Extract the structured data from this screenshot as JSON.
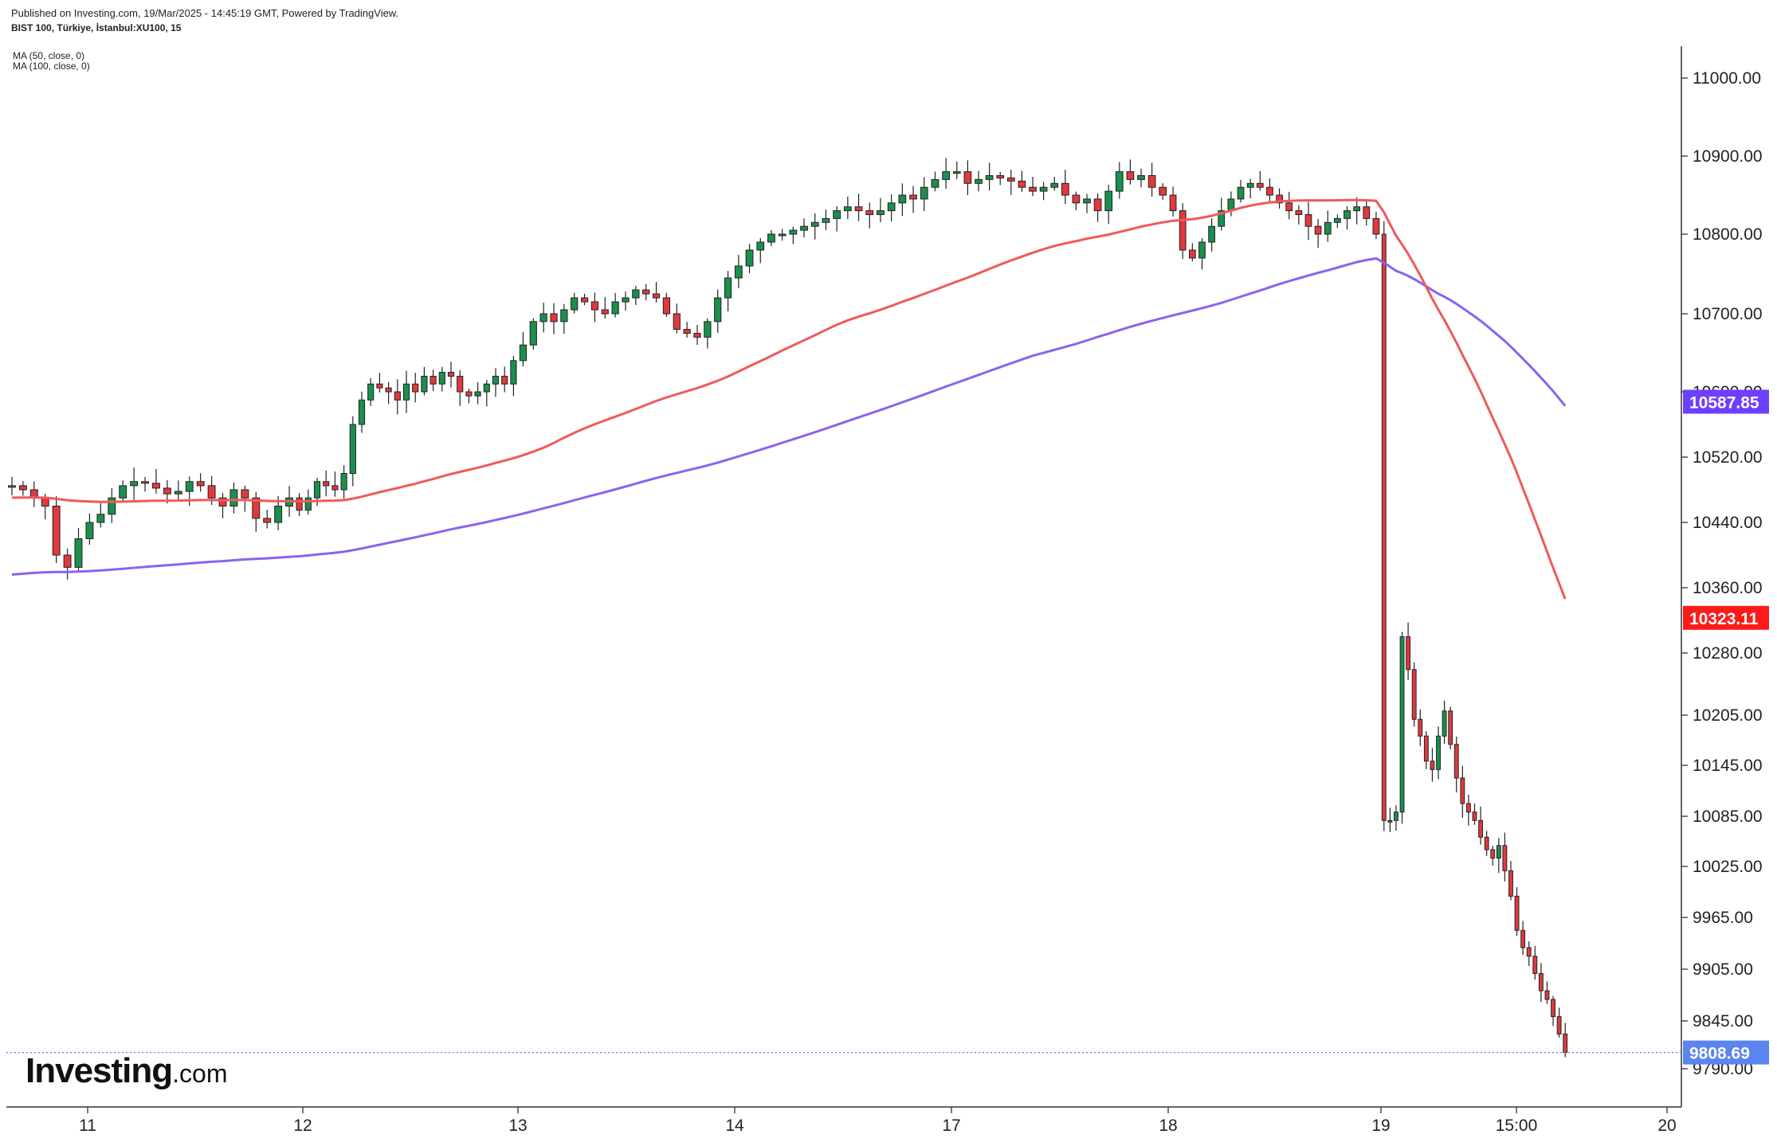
{
  "header": {
    "published": "Published on Investing.com, 19/Mar/2025 - 14:45:19 GMT, Powered by TradingView.",
    "symbol": "BIST 100, Türkiye, İstanbul:XU100, 15"
  },
  "legend": {
    "ma50": "MA (50, close, 0)",
    "ma100": "MA (100, close, 0)"
  },
  "logo": {
    "main": "Investing",
    "suffix": ".com"
  },
  "colors": {
    "up": "#1a8f4e",
    "down": "#e0393e",
    "ma50": "#f0595a",
    "ma100": "#8a63f0",
    "ma100_tag": "#6d3fff",
    "ma50_tag": "#ff1a1a",
    "last_tag": "#5b84f0"
  },
  "chart_data": {
    "type": "candlestick",
    "title": "",
    "x_ticks": [
      "11",
      "12",
      "13",
      "14",
      "17",
      "18",
      "19",
      "15:00",
      "20"
    ],
    "y_ticks": [
      "11000.00",
      "10900.00",
      "10800.00",
      "10700.00",
      "10600.00",
      "10520.00",
      "10440.00",
      "10360.00",
      "10280.00",
      "10205.00",
      "10145.00",
      "10085.00",
      "10025.00",
      "9965.00",
      "9905.00",
      "9845.00",
      "9790.00"
    ],
    "price_tags": {
      "ma100": "10587.85",
      "ma50": "10323.11",
      "last": "9808.69"
    },
    "approx_closes": {
      "Mar 11": [
        10470,
        10395,
        10420,
        10445,
        10480,
        10485
      ],
      "Mar 12": [
        10465,
        10450,
        10520,
        10590,
        10600,
        10610,
        10620
      ],
      "Mar 13": [
        10690,
        10705,
        10700,
        10720,
        10715
      ],
      "Mar 14": [
        10670,
        10740,
        10780,
        10805,
        10810,
        10830
      ],
      "Mar 17": [
        10880,
        10865,
        10875,
        10860
      ],
      "Mar 18": [
        10830,
        10790,
        10830,
        10865,
        10840,
        10845
      ],
      "Mar 19": [
        10080,
        10300,
        10200,
        10130,
        10035,
        9940,
        9870,
        9808.69
      ]
    },
    "series": [
      {
        "name": "MA (50, close, 0)",
        "last": 10323.11
      },
      {
        "name": "MA (100, close, 0)",
        "last": 10587.85
      }
    ]
  }
}
